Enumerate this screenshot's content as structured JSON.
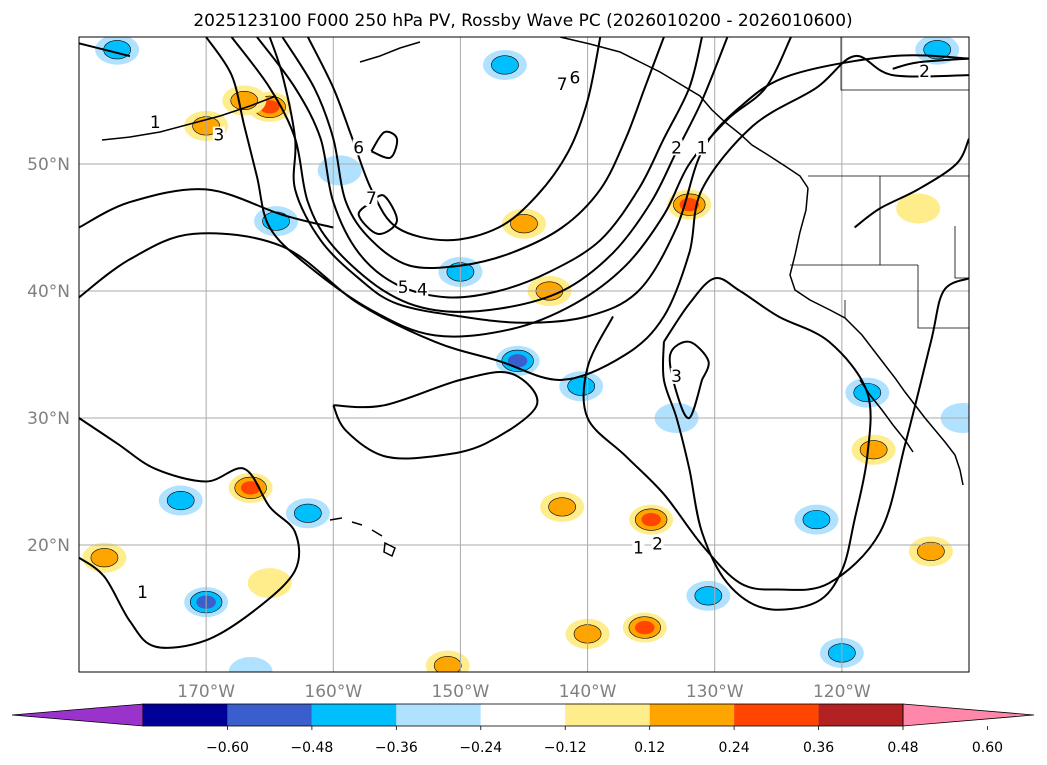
{
  "chart_data": {
    "type": "heatmap",
    "title": "2025123100 F000 250 hPa PV, Rossby Wave PC (2026010200 - 2026010600)",
    "longitude_ticks": [
      {
        "lon": -170,
        "label": "170°W"
      },
      {
        "lon": -160,
        "label": "160°W"
      },
      {
        "lon": -150,
        "label": "150°W"
      },
      {
        "lon": -140,
        "label": "140°W"
      },
      {
        "lon": -130,
        "label": "130°W"
      },
      {
        "lon": -120,
        "label": "120°W"
      }
    ],
    "latitude_ticks": [
      {
        "lat": 50,
        "label": "50°N"
      },
      {
        "lat": 40,
        "label": "40°N"
      },
      {
        "lat": 30,
        "label": "30°N"
      },
      {
        "lat": 20,
        "label": "20°N"
      }
    ],
    "extent": {
      "lon": [
        -180,
        -110
      ],
      "lat": [
        10,
        60
      ]
    },
    "grid": true,
    "colorbar": {
      "orientation": "horizontal",
      "extend": "both",
      "ticks": [
        "−0.60",
        "−0.48",
        "−0.36",
        "−0.24",
        "−0.12",
        "0.12",
        "0.24",
        "0.36",
        "0.48",
        "0.60"
      ],
      "colors": [
        "#9933cc",
        "#000099",
        "#3a5fcd",
        "#00bfff",
        "#b0e2ff",
        "#ffffff",
        "#ffec8b",
        "#ffa500",
        "#ff4500",
        "#b22222",
        "#ff88aa"
      ]
    },
    "contour_labels": [
      {
        "label": "1",
        "lon": -174,
        "lat": 53
      },
      {
        "label": "3",
        "lon": -169,
        "lat": 52
      },
      {
        "label": "6",
        "lon": -158,
        "lat": 51
      },
      {
        "label": "7",
        "lon": -157,
        "lat": 47
      },
      {
        "label": "7",
        "lon": -142,
        "lat": 56
      },
      {
        "label": "6",
        "lon": -141,
        "lat": 56.5
      },
      {
        "label": "5",
        "lon": -154.5,
        "lat": 40
      },
      {
        "label": "4",
        "lon": -153,
        "lat": 39.8
      },
      {
        "label": "2",
        "lon": -133,
        "lat": 51
      },
      {
        "label": "1",
        "lon": -131,
        "lat": 51
      },
      {
        "label": "3",
        "lon": -133,
        "lat": 33
      },
      {
        "label": "1",
        "lon": -175,
        "lat": 16
      },
      {
        "label": "1",
        "lon": -136,
        "lat": 19.5
      },
      {
        "label": "2",
        "lon": -134.5,
        "lat": 19.8
      },
      {
        "label": "2",
        "lon": -113.5,
        "lat": 57
      }
    ],
    "pv_anomaly_blobs": [
      {
        "lon": -170,
        "lat": 53,
        "value": 0.3
      },
      {
        "lon": -165,
        "lat": 54.5,
        "value": 0.42
      },
      {
        "lon": -167,
        "lat": 55,
        "value": 0.3
      },
      {
        "lon": -177,
        "lat": 59,
        "value": -0.3
      },
      {
        "lon": -164.5,
        "lat": 45.5,
        "value": -0.3
      },
      {
        "lon": -159.5,
        "lat": 49.5,
        "value": -0.2
      },
      {
        "lon": -145,
        "lat": 45.3,
        "value": 0.3
      },
      {
        "lon": -143,
        "lat": 40,
        "value": 0.3
      },
      {
        "lon": -150,
        "lat": 41.5,
        "value": -0.25
      },
      {
        "lon": -145.5,
        "lat": 34.5,
        "value": -0.4
      },
      {
        "lon": -140.5,
        "lat": 32.5,
        "value": -0.25
      },
      {
        "lon": -132,
        "lat": 46.8,
        "value": 0.4
      },
      {
        "lon": -146.5,
        "lat": 57.8,
        "value": -0.3
      },
      {
        "lon": -112.5,
        "lat": 59,
        "value": -0.3
      },
      {
        "lon": -114,
        "lat": 46.5,
        "value": 0.2
      },
      {
        "lon": -166.5,
        "lat": 24.5,
        "value": 0.45
      },
      {
        "lon": -172,
        "lat": 23.5,
        "value": -0.25
      },
      {
        "lon": -162,
        "lat": 22.5,
        "value": -0.3
      },
      {
        "lon": -178,
        "lat": 19,
        "value": 0.3
      },
      {
        "lon": -170,
        "lat": 15.5,
        "value": -0.4
      },
      {
        "lon": -165,
        "lat": 17,
        "value": 0.2
      },
      {
        "lon": -142,
        "lat": 23,
        "value": 0.25
      },
      {
        "lon": -135,
        "lat": 22,
        "value": 0.4
      },
      {
        "lon": -135.5,
        "lat": 13.5,
        "value": 0.45
      },
      {
        "lon": -140,
        "lat": 13,
        "value": 0.3
      },
      {
        "lon": -133,
        "lat": 30,
        "value": -0.2
      },
      {
        "lon": -122,
        "lat": 22,
        "value": -0.35
      },
      {
        "lon": -120,
        "lat": 11.5,
        "value": -0.3
      },
      {
        "lon": -117.5,
        "lat": 27.5,
        "value": 0.3
      },
      {
        "lon": -113,
        "lat": 19.5,
        "value": 0.3
      },
      {
        "lon": -118,
        "lat": 32,
        "value": -0.25
      },
      {
        "lon": -110.5,
        "lat": 30,
        "value": -0.2
      },
      {
        "lon": -151,
        "lat": 10.5,
        "value": 0.3
      },
      {
        "lon": -130.5,
        "lat": 16,
        "value": -0.25
      },
      {
        "lon": -166.5,
        "lat": 10,
        "value": -0.2
      }
    ],
    "pv_contours": [
      {
        "level": 1,
        "points": [
          [
            -180,
            39.5
          ],
          [
            -176,
            42.5
          ],
          [
            -171,
            44.5
          ],
          [
            -164,
            43.5
          ],
          [
            -158,
            39
          ],
          [
            -152,
            36
          ],
          [
            -147,
            34.5
          ],
          [
            -142,
            33
          ],
          [
            -137,
            35
          ],
          [
            -134,
            38
          ],
          [
            -132,
            43
          ],
          [
            -131,
            48
          ],
          [
            -127,
            53
          ],
          [
            -122,
            56
          ],
          [
            -119,
            58.5
          ],
          [
            -116,
            57
          ],
          [
            -110,
            57
          ]
        ]
      },
      {
        "level": 1,
        "points": [
          [
            -180,
            45
          ],
          [
            -176,
            47
          ],
          [
            -170,
            48
          ],
          [
            -164,
            46
          ],
          [
            -160,
            45
          ]
        ]
      },
      {
        "level": 1,
        "points": [
          [
            -165,
            60
          ],
          [
            -164,
            57
          ],
          [
            -163,
            52
          ],
          [
            -163,
            48
          ],
          [
            -161,
            44
          ],
          [
            -158,
            41
          ],
          [
            -155,
            39
          ],
          [
            -150,
            38
          ],
          [
            -145,
            37.5
          ],
          [
            -140,
            38
          ],
          [
            -136,
            40
          ],
          [
            -133,
            45
          ],
          [
            -131,
            51
          ],
          [
            -128,
            54.5
          ],
          [
            -124,
            57
          ],
          [
            -116,
            58.5
          ],
          [
            -110,
            58.3
          ]
        ]
      },
      {
        "level": 1,
        "points": [
          [
            -180,
            30
          ],
          [
            -177,
            28
          ],
          [
            -174,
            26
          ],
          [
            -170,
            25
          ],
          [
            -167,
            26
          ],
          [
            -165,
            23
          ],
          [
            -163,
            21
          ],
          [
            -163,
            18
          ],
          [
            -166,
            15
          ],
          [
            -170,
            12.5
          ],
          [
            -174,
            12
          ],
          [
            -176,
            14
          ],
          [
            -178,
            17.5
          ],
          [
            -180,
            19
          ]
        ]
      },
      {
        "level": 1,
        "points": [
          [
            -160,
            31
          ],
          [
            -156,
            31
          ],
          [
            -150,
            33
          ],
          [
            -146,
            33.5
          ],
          [
            -144,
            31
          ],
          [
            -148,
            28
          ],
          [
            -152,
            27
          ],
          [
            -156,
            27
          ],
          [
            -159,
            29
          ],
          [
            -160,
            31
          ]
        ]
      },
      {
        "level": 2,
        "points": [
          [
            -134,
            36
          ],
          [
            -132,
            39
          ],
          [
            -130,
            41
          ],
          [
            -128,
            40
          ],
          [
            -125,
            38
          ],
          [
            -121,
            36
          ],
          [
            -118,
            32
          ],
          [
            -118,
            27
          ],
          [
            -119,
            22
          ],
          [
            -120,
            18
          ],
          [
            -122,
            15.5
          ],
          [
            -126,
            15
          ],
          [
            -129,
            17
          ],
          [
            -131,
            21
          ],
          [
            -132,
            26
          ],
          [
            -133,
            30
          ],
          [
            -134,
            33
          ],
          [
            -134,
            36
          ]
        ]
      },
      {
        "level": 1,
        "points": [
          [
            -138,
            38
          ],
          [
            -140,
            34
          ],
          [
            -140,
            30
          ],
          [
            -137,
            27
          ],
          [
            -134,
            24
          ],
          [
            -131,
            20
          ],
          [
            -128,
            17
          ],
          [
            -125,
            16.5
          ],
          [
            -121,
            17
          ],
          [
            -117,
            21
          ],
          [
            -115,
            28
          ],
          [
            -113,
            36
          ],
          [
            -112,
            40
          ],
          [
            -110,
            41
          ]
        ]
      },
      {
        "level": 3,
        "points": [
          [
            -131,
            33
          ],
          [
            -132,
            30
          ],
          [
            -133,
            32
          ],
          [
            -133.5,
            35
          ],
          [
            -132,
            36
          ],
          [
            -130.5,
            34.5
          ],
          [
            -131,
            33
          ]
        ]
      },
      {
        "level": 3,
        "points": [
          [
            -170,
            60
          ],
          [
            -168,
            57
          ],
          [
            -167,
            53
          ],
          [
            -166,
            49
          ],
          [
            -165,
            45
          ],
          [
            -162,
            42
          ],
          [
            -157,
            38.5
          ],
          [
            -152,
            36.5
          ],
          [
            -146,
            37
          ],
          [
            -141,
            39
          ],
          [
            -137,
            42
          ],
          [
            -134,
            46
          ],
          [
            -132,
            50
          ],
          [
            -129,
            53.5
          ],
          [
            -126,
            56
          ],
          [
            -124,
            60
          ]
        ]
      },
      {
        "level": 4,
        "points": [
          [
            -168,
            60
          ],
          [
            -165,
            56
          ],
          [
            -163,
            52
          ],
          [
            -162,
            47
          ],
          [
            -160,
            43.5
          ],
          [
            -156,
            40
          ],
          [
            -152,
            38.5
          ],
          [
            -147,
            38.6
          ],
          [
            -142,
            40
          ],
          [
            -138,
            43
          ],
          [
            -135,
            47
          ],
          [
            -133,
            51
          ],
          [
            -131,
            55
          ],
          [
            -129,
            60
          ]
        ]
      },
      {
        "level": 5,
        "points": [
          [
            -166,
            60
          ],
          [
            -163,
            56
          ],
          [
            -161,
            52
          ],
          [
            -160,
            47
          ],
          [
            -158,
            43
          ],
          [
            -155,
            40.5
          ],
          [
            -151,
            39.5
          ],
          [
            -147,
            40
          ],
          [
            -143,
            41.5
          ],
          [
            -139,
            44
          ],
          [
            -136,
            48
          ],
          [
            -134,
            52
          ],
          [
            -132,
            56
          ],
          [
            -131,
            60
          ]
        ]
      },
      {
        "level": 6,
        "points": [
          [
            -164,
            60
          ],
          [
            -161.5,
            56
          ],
          [
            -160,
            52
          ],
          [
            -159,
            47
          ],
          [
            -157,
            44
          ],
          [
            -154,
            42
          ],
          [
            -150,
            42
          ],
          [
            -146,
            43
          ],
          [
            -142,
            45
          ],
          [
            -139,
            48
          ],
          [
            -137,
            52
          ],
          [
            -135.5,
            56
          ],
          [
            -134,
            60
          ]
        ]
      },
      {
        "level": 7,
        "points": [
          [
            -162,
            60
          ],
          [
            -160,
            56
          ],
          [
            -158.5,
            52
          ],
          [
            -157,
            48
          ],
          [
            -155,
            45
          ],
          [
            -151,
            44
          ],
          [
            -147,
            45
          ],
          [
            -144,
            47.5
          ],
          [
            -141.5,
            51
          ],
          [
            -140,
            55
          ],
          [
            -139,
            60
          ]
        ]
      },
      {
        "level": 6,
        "points": [
          [
            -157,
            51
          ],
          [
            -156,
            52.5
          ],
          [
            -155,
            52
          ],
          [
            -155.5,
            50.5
          ],
          [
            -157,
            51
          ]
        ]
      },
      {
        "level": 7,
        "points": [
          [
            -157,
            47
          ],
          [
            -158,
            46
          ],
          [
            -156.5,
            44.5
          ],
          [
            -155,
            45.5
          ],
          [
            -156,
            47.5
          ],
          [
            -157,
            47
          ]
        ]
      },
      {
        "level": 1,
        "points": [
          [
            -110,
            52
          ],
          [
            -111,
            50
          ],
          [
            -114,
            48
          ],
          [
            -117,
            46.5
          ],
          [
            -119,
            45
          ]
        ]
      },
      {
        "level": 2,
        "points": [
          [
            -180,
            59.5
          ],
          [
            -178,
            59
          ],
          [
            -176,
            58.5
          ]
        ]
      },
      {
        "level": 2,
        "points": [
          [
            -116,
            57.5
          ],
          [
            -114,
            58
          ],
          [
            -110,
            58.3
          ]
        ]
      }
    ]
  }
}
